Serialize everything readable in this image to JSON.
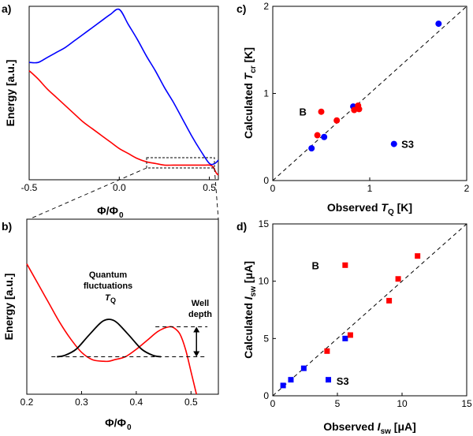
{
  "chart_data": [
    {
      "panel": "a)",
      "type": "line",
      "xlabel": "Φ/Φ",
      "xlabel_sub": "0",
      "ylabel": "Energy [a.u.]",
      "xlim": [
        -0.5,
        0.55
      ],
      "ylim": [
        0,
        1
      ],
      "xticks": [
        -0.5,
        0,
        0.5
      ],
      "xtick_labels": [
        "-0.5",
        "0.0",
        "0.5"
      ],
      "series": [
        {
          "name": "upper branch",
          "color": "#0000ff",
          "x": [
            -0.5,
            -0.45,
            -0.4,
            -0.35,
            -0.3,
            -0.25,
            -0.2,
            -0.15,
            -0.1,
            -0.05,
            0.0,
            0.05,
            0.1,
            0.15,
            0.2,
            0.25,
            0.3,
            0.35,
            0.4,
            0.45,
            0.5,
            0.53,
            0.55
          ],
          "y": [
            0.68,
            0.68,
            0.71,
            0.74,
            0.77,
            0.81,
            0.85,
            0.89,
            0.93,
            0.97,
            1.0,
            0.91,
            0.82,
            0.72,
            0.63,
            0.53,
            0.44,
            0.34,
            0.24,
            0.15,
            0.07,
            0.07,
            0.09
          ]
        },
        {
          "name": "lower branch",
          "color": "#ff0000",
          "x": [
            -0.5,
            -0.45,
            -0.4,
            -0.35,
            -0.3,
            -0.25,
            -0.2,
            -0.15,
            -0.1,
            -0.05,
            0.0,
            0.05,
            0.1,
            0.15,
            0.2,
            0.25,
            0.3,
            0.35,
            0.4,
            0.45,
            0.48,
            0.5,
            0.52,
            0.53,
            0.54,
            0.55
          ],
          "y": [
            0.63,
            0.58,
            0.52,
            0.47,
            0.42,
            0.37,
            0.32,
            0.28,
            0.24,
            0.2,
            0.16,
            0.13,
            0.1,
            0.08,
            0.07,
            0.06,
            0.06,
            0.06,
            0.06,
            0.06,
            0.06,
            0.06,
            0.05,
            0.03,
            0.01,
            0.0
          ]
        }
      ],
      "annotation": "dashed zoom box around 0.15–0.55 feeding panel b"
    },
    {
      "panel": "b)",
      "type": "line",
      "xlabel": "Φ/Φ",
      "xlabel_sub": "0",
      "ylabel": "Energy [a.u.]",
      "xlim": [
        0.2,
        0.55
      ],
      "ylim": [
        0,
        1
      ],
      "xticks": [
        0.2,
        0.3,
        0.4,
        0.5
      ],
      "xtick_labels": [
        "0.2",
        "0.3",
        "0.4",
        "0.5"
      ],
      "series": [
        {
          "name": "potential",
          "color": "#ff0000",
          "x": [
            0.2,
            0.22,
            0.24,
            0.26,
            0.28,
            0.3,
            0.32,
            0.34,
            0.35,
            0.36,
            0.38,
            0.4,
            0.42,
            0.44,
            0.46,
            0.47,
            0.48,
            0.49,
            0.5,
            0.51
          ],
          "y": [
            0.87,
            0.74,
            0.61,
            0.48,
            0.37,
            0.28,
            0.23,
            0.22,
            0.22,
            0.23,
            0.25,
            0.3,
            0.36,
            0.42,
            0.45,
            0.44,
            0.4,
            0.3,
            0.15,
            0.0
          ]
        },
        {
          "name": "wavefunction",
          "color": "#000000",
          "x": [
            0.255,
            0.27,
            0.29,
            0.31,
            0.33,
            0.34,
            0.35,
            0.36,
            0.37,
            0.39,
            0.41,
            0.43,
            0.445
          ],
          "y": [
            0.25,
            0.26,
            0.3,
            0.38,
            0.46,
            0.49,
            0.5,
            0.49,
            0.46,
            0.38,
            0.3,
            0.26,
            0.25
          ]
        }
      ],
      "ground_level_y": 0.25,
      "barrier_top_y": 0.45,
      "labels": {
        "quantum_line1": "Quantum",
        "quantum_line2": "fluctuations",
        "tq_main": "T",
        "tq_sub": "Q",
        "well_line1": "Well",
        "well_line2": "depth"
      }
    },
    {
      "panel": "c)",
      "type": "scatter",
      "xlabel": "Observed ",
      "xlabel_italic": "T",
      "xlabel_sub": "Q",
      "xlabel_unit": " [K]",
      "ylabel": "Calculated ",
      "ylabel_italic": "T",
      "ylabel_sub": "cr",
      "ylabel_unit": " [K]",
      "xlim": [
        0,
        2
      ],
      "ylim": [
        0,
        2
      ],
      "xticks": [
        0,
        1,
        2
      ],
      "yticks": [
        0,
        1,
        2
      ],
      "diagonal": true,
      "series": [
        {
          "name": "blue",
          "color": "#0000ff",
          "points": [
            [
              0.4,
              0.37
            ],
            [
              0.53,
              0.5
            ],
            [
              0.83,
              0.85
            ],
            [
              1.25,
              0.42
            ],
            [
              1.71,
              1.8
            ]
          ]
        },
        {
          "name": "red",
          "color": "#ff0000",
          "points": [
            [
              0.46,
              0.52
            ],
            [
              0.5,
              0.79
            ],
            [
              0.66,
              0.69
            ],
            [
              0.84,
              0.81
            ],
            [
              0.88,
              0.86
            ],
            [
              0.89,
              0.82
            ]
          ]
        }
      ],
      "annotations": [
        {
          "text": "B",
          "x": 0.43,
          "y": 0.79
        },
        {
          "text": "S3",
          "x": 1.31,
          "y": 0.42
        }
      ]
    },
    {
      "panel": "d)",
      "type": "scatter",
      "xlabel": "Observed ",
      "xlabel_italic": "I",
      "xlabel_sub": "sw",
      "xlabel_unit": " [μA]",
      "ylabel": "Calculated ",
      "ylabel_italic": "I",
      "ylabel_sub": "sw",
      "ylabel_unit": " [μA]",
      "xlim": [
        0,
        15
      ],
      "ylim": [
        0,
        15
      ],
      "xticks": [
        0,
        5,
        10,
        15
      ],
      "yticks": [
        0,
        5,
        10,
        15
      ],
      "diagonal": true,
      "series": [
        {
          "name": "blue",
          "color": "#0000ff",
          "points": [
            [
              0.8,
              0.9
            ],
            [
              1.4,
              1.4
            ],
            [
              2.4,
              2.4
            ],
            [
              4.3,
              1.4
            ],
            [
              5.6,
              5.0
            ]
          ]
        },
        {
          "name": "red",
          "color": "#ff0000",
          "points": [
            [
              4.2,
              3.9
            ],
            [
              5.6,
              11.4
            ],
            [
              6.0,
              5.3
            ],
            [
              9.0,
              8.3
            ],
            [
              9.7,
              10.2
            ],
            [
              11.2,
              12.2
            ]
          ]
        }
      ],
      "annotations": [
        {
          "text": "B",
          "x": 4.2,
          "y": 11.4
        },
        {
          "text": "S3",
          "x": 4.8,
          "y": 1.3
        }
      ]
    }
  ]
}
